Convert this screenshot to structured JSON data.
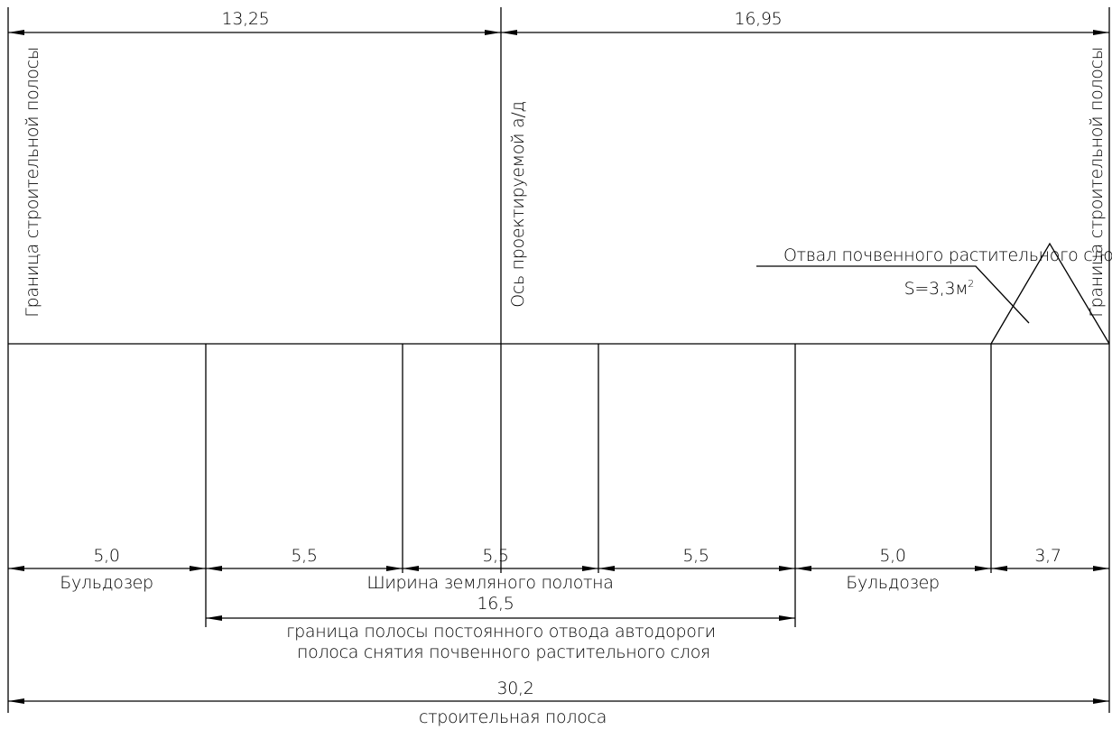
{
  "dimensions": {
    "top_left": "13,25",
    "top_right": "16,95",
    "seg_1": "5,0",
    "seg_2": "5,5",
    "seg_3": "5,5",
    "seg_4": "5,5",
    "seg_5": "5,0",
    "seg_6": "3,7",
    "middle": "16,5",
    "total": "30,2"
  },
  "labels": {
    "left_boundary": "Граница строительной полосы",
    "right_boundary": "Граница строительной полосы",
    "axis": "Ось проектируемой а/д",
    "spoil_title": "Отвал почвенного растительного слоя",
    "spoil_area": "S=3,3м",
    "spoil_area_exp": "2",
    "bulldozer_left": "Бульдозер",
    "bulldozer_right": "Бульдозер",
    "roadbed_width": "Ширина  земляного полотна",
    "right_of_way": "граница полосы постоянного отвода автодороги",
    "stripping_strip": "полоса снятия почвенного растительного слоя",
    "construction_strip": "строительная полоса"
  }
}
